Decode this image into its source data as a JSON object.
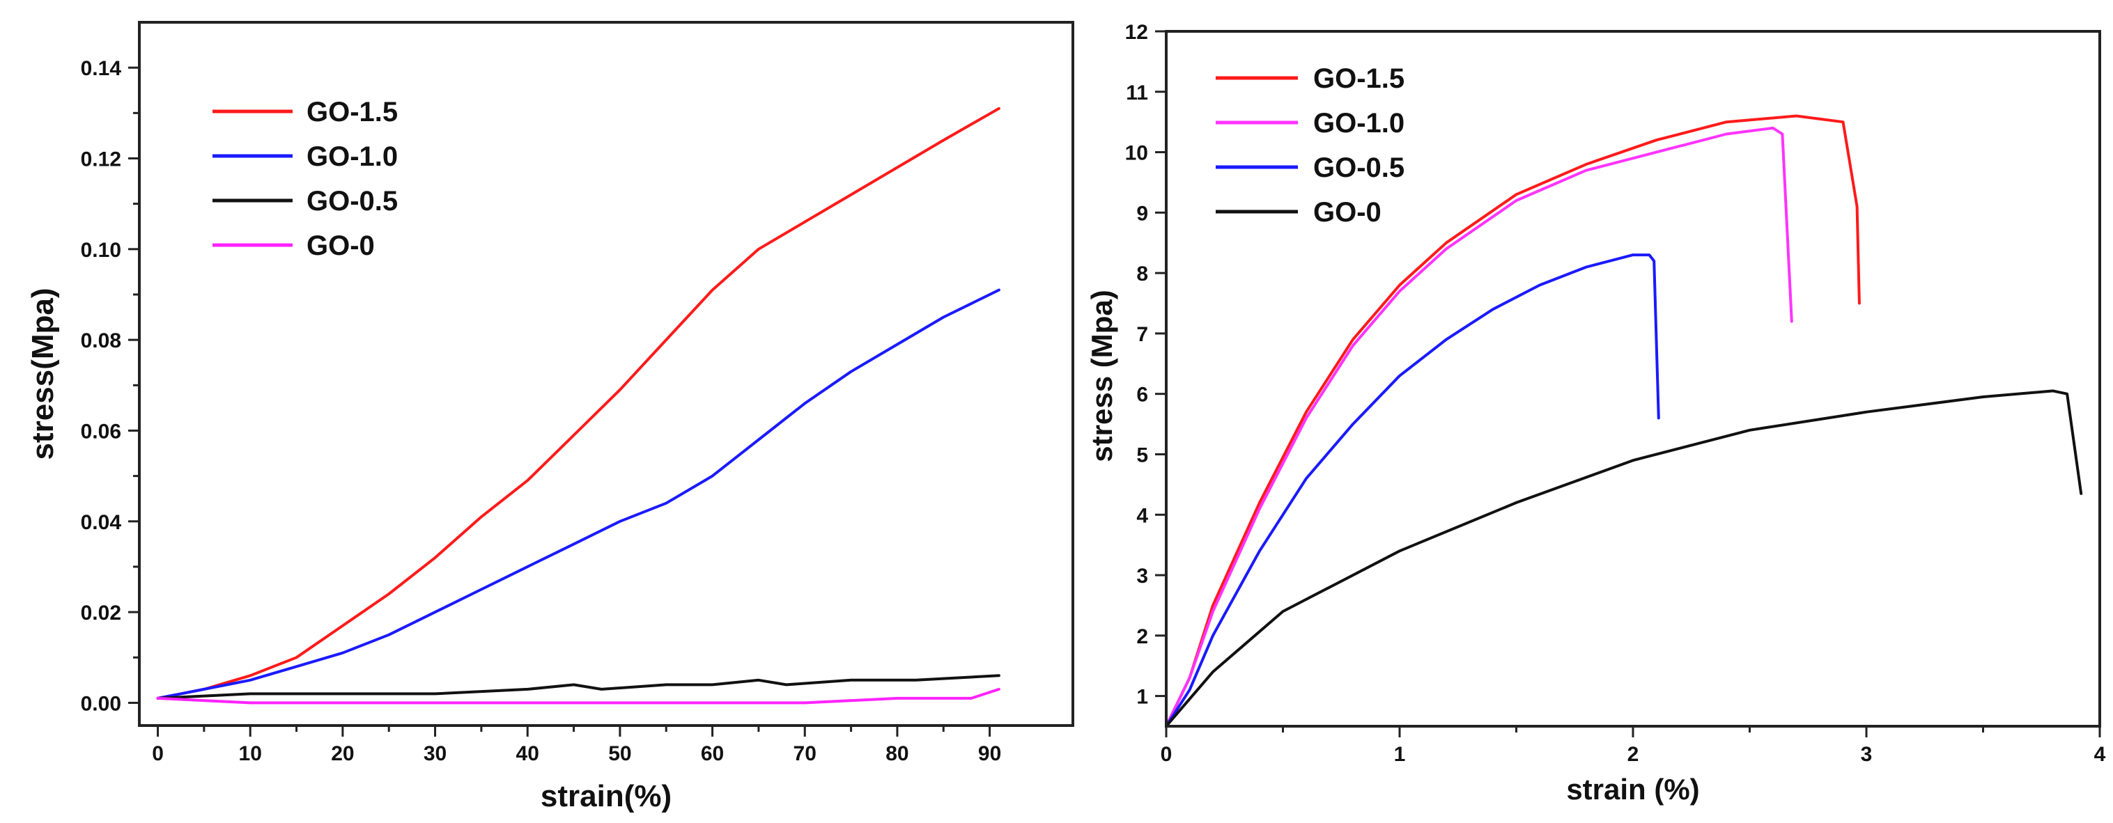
{
  "chart_data": [
    {
      "type": "line",
      "title": "",
      "xlabel": "strain(%)",
      "ylabel": "stress(Mpa)",
      "xlim": [
        -2,
        99
      ],
      "ylim": [
        -0.005,
        0.15
      ],
      "xticks": [
        0,
        10,
        20,
        30,
        40,
        50,
        60,
        70,
        80,
        90
      ],
      "yticks": [
        0.0,
        0.02,
        0.04,
        0.06,
        0.08,
        0.1,
        0.12,
        0.14
      ],
      "ytick_labels": [
        "0.00",
        "0.02",
        "0.04",
        "0.06",
        "0.08",
        "0.10",
        "0.12",
        "0.14"
      ],
      "grid": false,
      "legend_position": "top-left",
      "series": [
        {
          "name": "GO-1.5",
          "color": "#ff1a1a",
          "x": [
            0,
            5,
            10,
            15,
            20,
            25,
            30,
            35,
            40,
            45,
            50,
            55,
            60,
            65,
            70,
            75,
            80,
            85,
            91
          ],
          "y": [
            0.001,
            0.003,
            0.006,
            0.01,
            0.017,
            0.024,
            0.032,
            0.041,
            0.049,
            0.059,
            0.069,
            0.08,
            0.091,
            0.1,
            0.106,
            0.112,
            0.118,
            0.124,
            0.131
          ]
        },
        {
          "name": "GO-1.0",
          "color": "#1a1aff",
          "x": [
            0,
            5,
            10,
            15,
            20,
            25,
            30,
            35,
            40,
            45,
            50,
            55,
            60,
            65,
            70,
            75,
            80,
            85,
            91
          ],
          "y": [
            0.001,
            0.003,
            0.005,
            0.008,
            0.011,
            0.015,
            0.02,
            0.025,
            0.03,
            0.035,
            0.04,
            0.044,
            0.05,
            0.058,
            0.066,
            0.073,
            0.079,
            0.085,
            0.091
          ]
        },
        {
          "name": "GO-0.5",
          "color": "#111111",
          "x": [
            0,
            10,
            20,
            30,
            40,
            45,
            48,
            55,
            60,
            65,
            68,
            75,
            78,
            82,
            91
          ],
          "y": [
            0.001,
            0.002,
            0.002,
            0.002,
            0.003,
            0.004,
            0.003,
            0.004,
            0.004,
            0.005,
            0.004,
            0.005,
            0.005,
            0.005,
            0.006
          ]
        },
        {
          "name": "GO-0",
          "color": "#ff22ff",
          "x": [
            0,
            10,
            20,
            30,
            40,
            50,
            60,
            70,
            80,
            88,
            91
          ],
          "y": [
            0.001,
            0.0,
            0.0,
            0.0,
            0.0,
            0.0,
            0.0,
            0.0,
            0.001,
            0.001,
            0.003
          ]
        }
      ]
    },
    {
      "type": "line",
      "title": "",
      "xlabel": "strain (%)",
      "ylabel": "stress (Mpa)",
      "xlim": [
        0,
        4
      ],
      "ylim": [
        0.5,
        12
      ],
      "xticks": [
        0,
        1,
        2,
        3,
        4
      ],
      "yticks": [
        1,
        2,
        3,
        4,
        5,
        6,
        7,
        8,
        9,
        10,
        11,
        12
      ],
      "grid": false,
      "legend_position": "top-left",
      "series": [
        {
          "name": "GO-1.5",
          "color": "#ff1a1a",
          "x": [
            0,
            0.1,
            0.2,
            0.4,
            0.6,
            0.8,
            1.0,
            1.2,
            1.5,
            1.8,
            2.1,
            2.4,
            2.7,
            2.9,
            2.96,
            2.97
          ],
          "y": [
            0.5,
            1.3,
            2.5,
            4.2,
            5.7,
            6.9,
            7.8,
            8.5,
            9.3,
            9.8,
            10.2,
            10.5,
            10.6,
            10.5,
            9.1,
            7.5
          ]
        },
        {
          "name": "GO-1.0",
          "color": "#ff33ff",
          "x": [
            0,
            0.1,
            0.2,
            0.4,
            0.6,
            0.8,
            1.0,
            1.2,
            1.5,
            1.8,
            2.1,
            2.4,
            2.6,
            2.64,
            2.68
          ],
          "y": [
            0.5,
            1.3,
            2.4,
            4.1,
            5.6,
            6.8,
            7.7,
            8.4,
            9.2,
            9.7,
            10.0,
            10.3,
            10.4,
            10.3,
            7.2
          ]
        },
        {
          "name": "GO-0.5",
          "color": "#1a1aff",
          "x": [
            0,
            0.1,
            0.2,
            0.4,
            0.6,
            0.8,
            1.0,
            1.2,
            1.4,
            1.6,
            1.8,
            2.0,
            2.07,
            2.09,
            2.11
          ],
          "y": [
            0.5,
            1.1,
            2.0,
            3.4,
            4.6,
            5.5,
            6.3,
            6.9,
            7.4,
            7.8,
            8.1,
            8.3,
            8.3,
            8.2,
            5.6
          ]
        },
        {
          "name": "GO-0",
          "color": "#111111",
          "x": [
            0,
            0.2,
            0.5,
            1.0,
            1.5,
            2.0,
            2.5,
            3.0,
            3.5,
            3.8,
            3.86,
            3.92
          ],
          "y": [
            0.5,
            1.4,
            2.4,
            3.4,
            4.2,
            4.9,
            5.4,
            5.7,
            5.95,
            6.05,
            6.0,
            4.35
          ]
        }
      ]
    }
  ]
}
